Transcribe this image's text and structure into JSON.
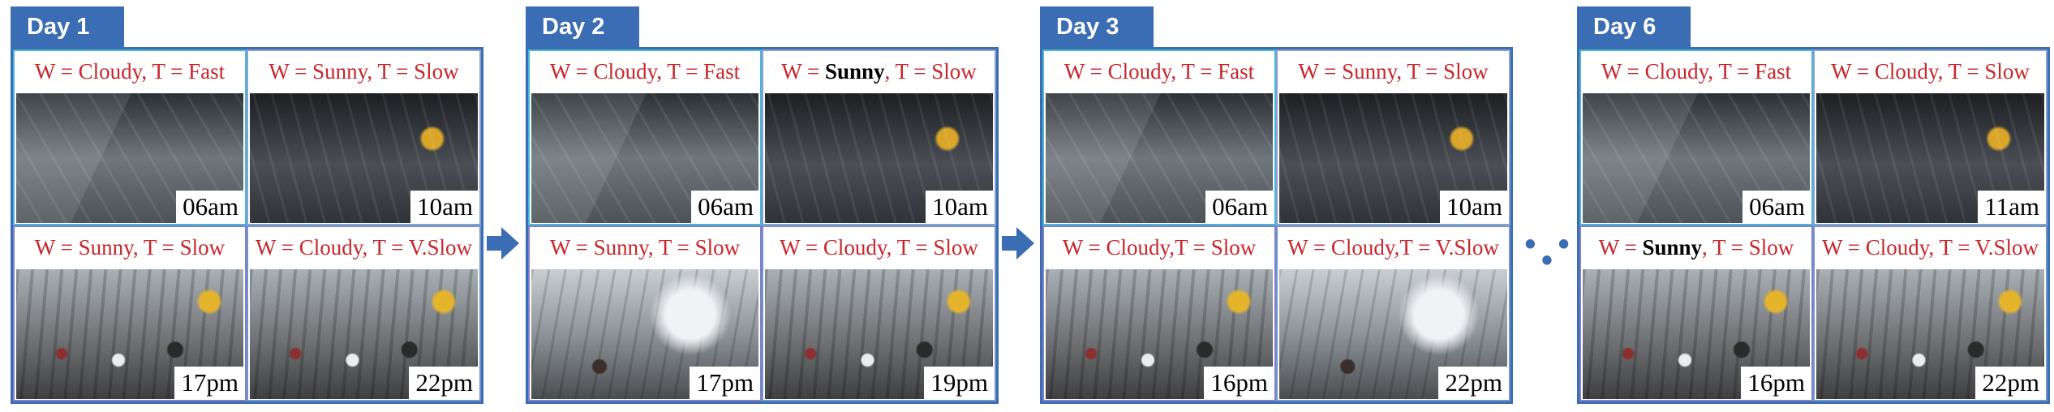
{
  "colors": {
    "accent": "#3a6db3",
    "caption": "#c8262c"
  },
  "days": [
    {
      "label": "Day 1",
      "frames": [
        {
          "parts": [
            {
              "t": "W = Cloudy, T = Fast",
              "b": false
            }
          ],
          "time": "06am"
        },
        {
          "parts": [
            {
              "t": "W = Sunny, T = Slow",
              "b": false
            }
          ],
          "time": "10am"
        },
        {
          "parts": [
            {
              "t": "W = Sunny, T = Slow",
              "b": false
            }
          ],
          "time": "17pm"
        },
        {
          "parts": [
            {
              "t": "W = Cloudy, T = V.Slow",
              "b": false
            }
          ],
          "time": "22pm"
        }
      ]
    },
    {
      "label": "Day 2",
      "frames": [
        {
          "parts": [
            {
              "t": "W = Cloudy, T = Fast",
              "b": false
            }
          ],
          "time": "06am"
        },
        {
          "parts": [
            {
              "t": "W = ",
              "b": false
            },
            {
              "t": "Sunny",
              "b": true
            },
            {
              "t": ", T = Slow",
              "b": false
            }
          ],
          "time": "10am"
        },
        {
          "parts": [
            {
              "t": "W = Sunny, T = Slow",
              "b": false
            }
          ],
          "time": "17pm"
        },
        {
          "parts": [
            {
              "t": "W = Cloudy, T = Slow",
              "b": false
            }
          ],
          "time": "19pm"
        }
      ]
    },
    {
      "label": "Day 3",
      "frames": [
        {
          "parts": [
            {
              "t": "W = Cloudy, T = Fast",
              "b": false
            }
          ],
          "time": "06am"
        },
        {
          "parts": [
            {
              "t": "W = Sunny, T = Slow",
              "b": false
            }
          ],
          "time": "10am"
        },
        {
          "parts": [
            {
              "t": "W = Cloudy,T = Slow",
              "b": false
            }
          ],
          "time": "16pm"
        },
        {
          "parts": [
            {
              "t": "W = Cloudy,T = V.Slow",
              "b": false
            }
          ],
          "time": "22pm"
        }
      ]
    },
    {
      "label": "Day 6",
      "frames": [
        {
          "parts": [
            {
              "t": "W = Cloudy, T = Fast",
              "b": false
            }
          ],
          "time": "06am"
        },
        {
          "parts": [
            {
              "t": "W = Cloudy, T = Slow",
              "b": false
            }
          ],
          "time": "11am"
        },
        {
          "parts": [
            {
              "t": "W = ",
              "b": false
            },
            {
              "t": "Sunny",
              "b": true
            },
            {
              "t": ", T = Slow",
              "b": false
            }
          ],
          "time": "16pm"
        },
        {
          "parts": [
            {
              "t": "W = Cloudy, T = V.Slow",
              "b": false
            }
          ],
          "time": "22pm"
        }
      ]
    }
  ],
  "ellipsis": "• • •"
}
